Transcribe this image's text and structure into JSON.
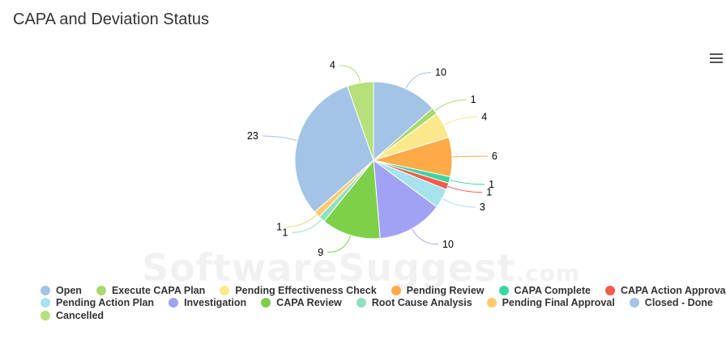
{
  "header": {
    "title": "CAPA and Deviation Status"
  },
  "toolbar": {
    "menu_icon": "hamburger-menu-icon"
  },
  "watermark": {
    "text": "SoftwareSuggest",
    "suffix": ".com"
  },
  "chart_data": {
    "type": "pie",
    "title": "CAPA and Deviation Status",
    "legend_position": "bottom",
    "slices": [
      {
        "name": "Open",
        "value": 10,
        "color": "#a3c4e6"
      },
      {
        "name": "Execute CAPA Plan",
        "value": 1,
        "color": "#a8d86e"
      },
      {
        "name": "Pending Effectiveness Check",
        "value": 4,
        "color": "#fbe88a"
      },
      {
        "name": "Pending Review",
        "value": 6,
        "color": "#fdab48"
      },
      {
        "name": "CAPA Complete",
        "value": 1,
        "color": "#3dd6a0"
      },
      {
        "name": "CAPA Action Approval",
        "value": 1,
        "color": "#f45b4b"
      },
      {
        "name": "Pending Action Plan",
        "value": 3,
        "color": "#a6e3ec"
      },
      {
        "name": "Investigation",
        "value": 10,
        "color": "#a2a2f5"
      },
      {
        "name": "CAPA Review",
        "value": 9,
        "color": "#7ed04b"
      },
      {
        "name": "Root Cause Analysis",
        "value": 1,
        "color": "#90e0c0"
      },
      {
        "name": "Pending Final Approval",
        "value": 1,
        "color": "#fdca6e"
      },
      {
        "name": "Closed - Done",
        "value": 23,
        "color": "#a3c4e6"
      },
      {
        "name": "Cancelled",
        "value": 4,
        "color": "#b5e07a"
      }
    ]
  }
}
